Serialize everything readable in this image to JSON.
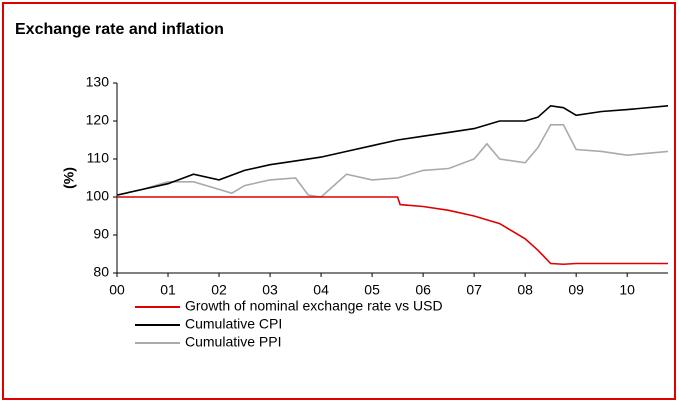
{
  "chart_data": {
    "type": "line",
    "title": "Exchange rate and inflation",
    "ylabel": "(%)",
    "ylim": [
      80,
      130
    ],
    "yticks": [
      80,
      90,
      100,
      110,
      120,
      130
    ],
    "xlim": [
      2000,
      2010.8
    ],
    "xticks": [
      {
        "value": 2000,
        "label": "00"
      },
      {
        "value": 2001,
        "label": "01"
      },
      {
        "value": 2002,
        "label": "02"
      },
      {
        "value": 2003,
        "label": "03"
      },
      {
        "value": 2004,
        "label": "04"
      },
      {
        "value": 2005,
        "label": "05"
      },
      {
        "value": 2006,
        "label": "06"
      },
      {
        "value": 2007,
        "label": "07"
      },
      {
        "value": 2008,
        "label": "08"
      },
      {
        "value": 2009,
        "label": "09"
      },
      {
        "value": 2010,
        "label": "10"
      }
    ],
    "series": [
      {
        "name": "Growth of nominal exchange rate vs USD",
        "color": "#e00000",
        "x": [
          2000,
          2005.5,
          2005.55,
          2006,
          2006.5,
          2007,
          2007.5,
          2008,
          2008.25,
          2008.5,
          2008.75,
          2009,
          2010,
          2010.8
        ],
        "values": [
          100,
          100,
          98,
          97.5,
          96.5,
          95,
          93,
          89,
          86,
          82.5,
          82.3,
          82.5,
          82.5,
          82.5
        ]
      },
      {
        "name": "Cumulative CPI",
        "color": "#000000",
        "x": [
          2000,
          2000.5,
          2001,
          2001.5,
          2002,
          2002.5,
          2003,
          2003.5,
          2004,
          2004.5,
          2005,
          2005.5,
          2006,
          2006.5,
          2007,
          2007.5,
          2008,
          2008.25,
          2008.5,
          2008.75,
          2009,
          2009.5,
          2010,
          2010.8
        ],
        "values": [
          100.5,
          102,
          103.5,
          106,
          104.5,
          107,
          108.5,
          109.5,
          110.5,
          112,
          113.5,
          115,
          116,
          117,
          118,
          120,
          120,
          121,
          124,
          123.5,
          121.5,
          122.5,
          123,
          124
        ]
      },
      {
        "name": "Cumulative PPI",
        "color": "#aaaaaa",
        "x": [
          2000,
          2000.5,
          2001,
          2001.5,
          2002,
          2002.25,
          2002.5,
          2003,
          2003.5,
          2003.75,
          2004,
          2004.25,
          2004.5,
          2005,
          2005.5,
          2006,
          2006.5,
          2007,
          2007.25,
          2007.5,
          2008,
          2008.25,
          2008.5,
          2008.75,
          2009,
          2009.5,
          2010,
          2010.8
        ],
        "values": [
          100.5,
          102,
          104,
          104,
          102,
          101,
          103,
          104.5,
          105,
          100.5,
          100,
          103,
          106,
          104.5,
          105,
          107,
          107.5,
          110,
          114,
          110,
          109,
          113,
          119,
          119,
          112.5,
          112,
          111,
          112
        ]
      }
    ]
  }
}
